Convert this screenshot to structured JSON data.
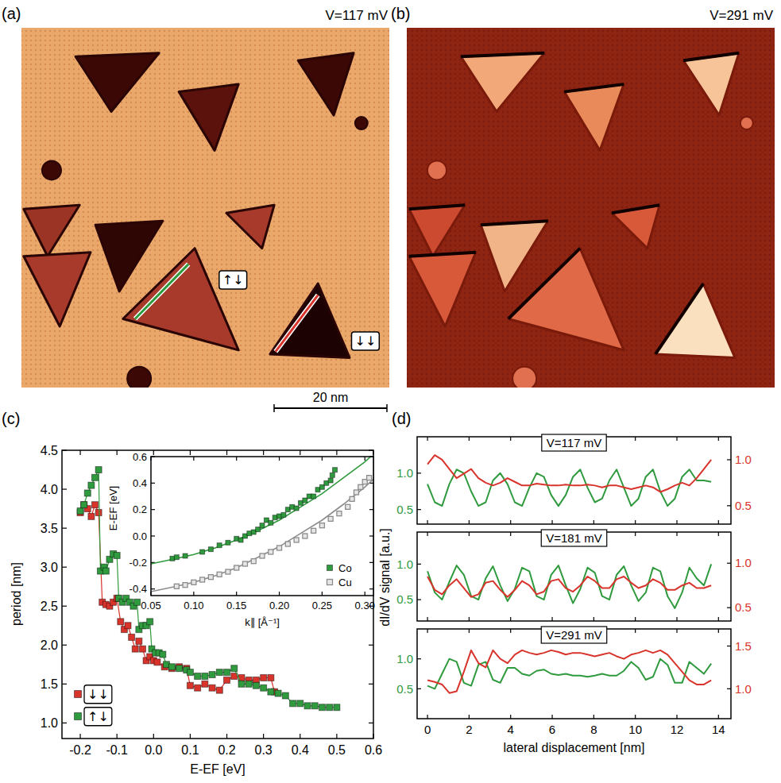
{
  "panels": [
    "(a)",
    "(b)",
    "(c)",
    "(d)"
  ],
  "images": [
    {
      "title": "V=117 mV",
      "labels": [
        "↑↓",
        "↓↓"
      ]
    },
    {
      "title": "V=291 mV"
    }
  ],
  "scale_bar": "20 nm",
  "chart_data": [
    {
      "type": "line",
      "marker": "square",
      "legend": "lower left",
      "xlabel": "E-EF [eV]",
      "ylabel": "period [nm]",
      "xlim": [
        -0.25,
        0.6
      ],
      "ylim": [
        0.8,
        4.5
      ],
      "xticks": [
        -0.2,
        -0.1,
        {
          "value": 0,
          "label": "0.0"
        },
        0.1,
        0.2,
        0.3,
        0.4,
        0.5,
        0.6
      ],
      "yticks": [
        {
          "value": 1,
          "label": "1.0"
        },
        1.5,
        {
          "value": 2,
          "label": "2.0"
        },
        2.5,
        {
          "value": 3,
          "label": "3.0"
        },
        3.5,
        {
          "value": 4,
          "label": "4.0"
        },
        4.5
      ],
      "series": [
        {
          "name": "↓↓",
          "color": "#d8342c",
          "x": [
            -0.2,
            -0.19,
            -0.18,
            -0.17,
            -0.16,
            -0.15,
            -0.14,
            -0.13,
            -0.12,
            -0.11,
            -0.1,
            -0.09,
            -0.08,
            -0.07,
            -0.06,
            -0.05,
            -0.04,
            -0.03,
            -0.02,
            -0.01,
            0.0,
            0.01,
            0.03,
            0.05,
            0.07,
            0.09,
            0.1,
            0.12,
            0.14,
            0.16,
            0.18,
            0.2,
            0.22,
            0.24,
            0.26,
            0.28,
            0.3,
            0.32,
            0.33
          ],
          "values": [
            3.7,
            3.8,
            3.75,
            3.65,
            3.8,
            3.7,
            2.55,
            2.52,
            2.5,
            2.55,
            2.6,
            2.3,
            2.2,
            2.25,
            2.1,
            1.95,
            2.05,
            1.95,
            1.8,
            1.85,
            1.8,
            1.78,
            1.72,
            1.7,
            1.72,
            1.7,
            1.48,
            1.45,
            1.5,
            1.45,
            1.42,
            1.55,
            1.6,
            1.58,
            1.55,
            1.55,
            1.58,
            1.58,
            1.4
          ]
        },
        {
          "name": "↑↓",
          "color": "#2f9a3e",
          "x": [
            -0.2,
            -0.19,
            -0.18,
            -0.17,
            -0.16,
            -0.15,
            -0.145,
            -0.135,
            -0.13,
            -0.12,
            -0.11,
            -0.1,
            -0.095,
            -0.085,
            -0.075,
            -0.065,
            -0.055,
            -0.045,
            -0.04,
            -0.03,
            -0.02,
            -0.01,
            -0.005,
            0.005,
            0.015,
            0.025,
            0.035,
            0.05,
            0.07,
            0.09,
            0.1,
            0.12,
            0.14,
            0.16,
            0.18,
            0.2,
            0.22,
            0.24,
            0.26,
            0.28,
            0.3,
            0.32,
            0.34,
            0.36,
            0.38,
            0.4,
            0.42,
            0.44,
            0.46,
            0.48,
            0.5
          ],
          "values": [
            3.72,
            3.8,
            3.95,
            4.05,
            4.15,
            4.25,
            2.95,
            3.0,
            2.95,
            3.1,
            3.17,
            3.15,
            2.6,
            2.55,
            2.6,
            2.55,
            2.5,
            2.55,
            2.2,
            2.25,
            2.25,
            2.3,
            1.95,
            1.9,
            1.9,
            1.88,
            1.75,
            1.72,
            1.7,
            1.68,
            1.65,
            1.6,
            1.6,
            1.62,
            1.65,
            1.65,
            1.7,
            1.5,
            1.5,
            1.48,
            1.45,
            1.4,
            1.38,
            1.35,
            1.25,
            1.25,
            1.22,
            1.22,
            1.2,
            1.2,
            1.2
          ]
        }
      ]
    },
    {
      "type": "scatter",
      "legend": "lower right",
      "xlabel": "k∥ [Å⁻¹]",
      "ylabel": "E-EF [eV]",
      "xlim": [
        0.05,
        0.31
      ],
      "ylim": [
        -0.45,
        0.6
      ],
      "xticks": [
        0.05,
        {
          "value": 0.1,
          "label": "0.10"
        },
        0.15,
        {
          "value": 0.2,
          "label": "0.20"
        },
        0.25,
        {
          "value": 0.3,
          "label": "0.30"
        }
      ],
      "yticks": [
        -0.4,
        -0.2,
        {
          "value": 0,
          "label": "0.0"
        },
        0.2,
        0.4,
        0.6
      ],
      "series": [
        {
          "name": "Co",
          "color": "#2f9a3e",
          "marker": "square",
          "x": [
            0.075,
            0.08,
            0.09,
            0.11,
            0.12,
            0.13,
            0.14,
            0.15,
            0.155,
            0.16,
            0.165,
            0.17,
            0.175,
            0.18,
            0.185,
            0.19,
            0.195,
            0.2,
            0.205,
            0.21,
            0.215,
            0.22,
            0.225,
            0.23,
            0.235,
            0.24,
            0.245,
            0.25,
            0.255,
            0.26,
            0.262,
            0.265
          ],
          "values": [
            -0.17,
            -0.16,
            -0.15,
            -0.12,
            -0.1,
            -0.07,
            -0.05,
            -0.02,
            -0.03,
            0.0,
            0.02,
            0.03,
            0.05,
            0.08,
            0.12,
            0.1,
            0.14,
            0.15,
            0.16,
            0.2,
            0.22,
            0.21,
            0.25,
            0.27,
            0.3,
            0.3,
            0.35,
            0.37,
            0.4,
            0.42,
            0.46,
            0.5
          ],
          "fit": {
            "x": [
              0.05,
              0.08,
              0.1,
              0.125,
              0.15,
              0.175,
              0.2,
              0.225,
              0.25,
              0.275,
              0.3,
              0.31
            ],
            "values": [
              -0.21,
              -0.17,
              -0.14,
              -0.09,
              -0.03,
              0.04,
              0.12,
              0.22,
              0.32,
              0.44,
              0.56,
              0.62
            ]
          }
        },
        {
          "name": "Cu",
          "color": "#8c8c8c",
          "marker": "open-square",
          "x": [
            0.08,
            0.09,
            0.1,
            0.11,
            0.12,
            0.13,
            0.14,
            0.15,
            0.16,
            0.17,
            0.18,
            0.19,
            0.2,
            0.21,
            0.22,
            0.23,
            0.24,
            0.25,
            0.26,
            0.27,
            0.28,
            0.285,
            0.29,
            0.295,
            0.3,
            0.305
          ],
          "values": [
            -0.38,
            -0.37,
            -0.35,
            -0.33,
            -0.31,
            -0.29,
            -0.27,
            -0.24,
            -0.21,
            -0.19,
            -0.15,
            -0.12,
            -0.09,
            -0.06,
            -0.03,
            0.0,
            0.04,
            0.08,
            0.13,
            0.17,
            0.22,
            0.28,
            0.33,
            0.37,
            0.41,
            0.44
          ],
          "fit": {
            "x": [
              0.05,
              0.08,
              0.1,
              0.125,
              0.15,
              0.175,
              0.2,
              0.225,
              0.25,
              0.275,
              0.3,
              0.31
            ],
            "values": [
              -0.42,
              -0.38,
              -0.35,
              -0.3,
              -0.24,
              -0.16,
              -0.08,
              0.02,
              0.12,
              0.24,
              0.37,
              0.43
            ]
          }
        }
      ]
    },
    {
      "type": "line",
      "title": "V=117 mV",
      "tick_labels": "y",
      "xlim": [
        -0.5,
        14.6
      ],
      "ylim": [
        0.3,
        1.5
      ],
      "y2lim": [
        0.3,
        1.25
      ],
      "xticks": [
        0,
        2,
        4,
        6,
        8,
        10,
        12,
        14
      ],
      "yticks": [
        0.5,
        {
          "value": 1,
          "label": "1.0"
        }
      ],
      "y2ticks": [
        0.5,
        {
          "value": 1,
          "label": "1.0"
        }
      ],
      "x": [
        0,
        0.35,
        0.7,
        1.05,
        1.4,
        1.75,
        2.1,
        2.45,
        2.8,
        3.15,
        3.5,
        3.85,
        4.2,
        4.55,
        4.9,
        5.25,
        5.6,
        5.95,
        6.3,
        6.65,
        7,
        7.35,
        7.7,
        8.05,
        8.4,
        8.75,
        9.1,
        9.45,
        9.8,
        10.15,
        10.5,
        10.85,
        11.2,
        11.55,
        11.9,
        12.25,
        12.6,
        12.95,
        13.3,
        13.65
      ],
      "series": [
        {
          "color": "#2f9a3e",
          "values": [
            0.85,
            0.6,
            0.55,
            0.85,
            1.05,
            1.0,
            0.75,
            0.55,
            0.6,
            0.9,
            1.0,
            0.85,
            0.6,
            0.55,
            0.8,
            1.0,
            0.95,
            0.7,
            0.55,
            0.7,
            0.95,
            1.05,
            0.8,
            0.6,
            0.65,
            0.9,
            1.05,
            0.8,
            0.55,
            0.65,
            0.95,
            1.05,
            0.75,
            0.55,
            0.65,
            0.95,
            1.05,
            0.9,
            0.9,
            0.88
          ]
        },
        {
          "color": "#d8342c",
          "axis": "y2",
          "values": [
            0.95,
            1.05,
            1.0,
            0.9,
            0.8,
            0.85,
            0.9,
            0.8,
            0.75,
            0.72,
            0.75,
            0.8,
            0.76,
            0.72,
            0.72,
            0.74,
            0.73,
            0.72,
            0.72,
            0.73,
            0.72,
            0.72,
            0.73,
            0.72,
            0.7,
            0.72,
            0.72,
            0.7,
            0.68,
            0.7,
            0.72,
            0.7,
            0.65,
            0.68,
            0.72,
            0.75,
            0.72,
            0.8,
            0.9,
            1.0
          ]
        }
      ]
    },
    {
      "type": "line",
      "title": "V=181 mV",
      "tick_labels": "y",
      "ylabel": "dI/dV signal [a.u.]",
      "xlim": [
        -0.5,
        14.6
      ],
      "ylim": [
        0.2,
        1.45
      ],
      "y2lim": [
        0.35,
        1.35
      ],
      "xticks": [
        0,
        2,
        4,
        6,
        8,
        10,
        12,
        14
      ],
      "yticks": [
        0.5,
        {
          "value": 1,
          "label": "1.0"
        }
      ],
      "y2ticks": [
        0.5,
        {
          "value": 1,
          "label": "1.0"
        }
      ],
      "x": [
        0,
        0.35,
        0.7,
        1.05,
        1.4,
        1.75,
        2.1,
        2.45,
        2.8,
        3.15,
        3.5,
        3.85,
        4.2,
        4.55,
        4.9,
        5.25,
        5.6,
        5.95,
        6.3,
        6.65,
        7,
        7.35,
        7.7,
        8.05,
        8.4,
        8.75,
        9.1,
        9.45,
        9.8,
        10.15,
        10.5,
        10.85,
        11.2,
        11.55,
        11.9,
        12.25,
        12.6,
        12.95,
        13.3,
        13.65
      ],
      "series": [
        {
          "color": "#2f9a3e",
          "values": [
            0.9,
            0.6,
            0.5,
            0.75,
            0.98,
            0.85,
            0.55,
            0.5,
            0.8,
            0.97,
            0.7,
            0.48,
            0.65,
            0.95,
            0.9,
            0.55,
            0.5,
            0.85,
            0.98,
            0.7,
            0.45,
            0.65,
            0.95,
            0.88,
            0.55,
            0.5,
            0.85,
            0.97,
            0.7,
            0.48,
            0.6,
            0.95,
            0.9,
            0.55,
            0.38,
            0.6,
            0.95,
            0.8,
            0.7,
            1.0
          ]
        },
        {
          "color": "#d8342c",
          "axis": "y2",
          "values": [
            0.85,
            0.7,
            0.65,
            0.75,
            0.82,
            0.72,
            0.62,
            0.65,
            0.78,
            0.8,
            0.7,
            0.62,
            0.7,
            0.8,
            0.75,
            0.65,
            0.68,
            0.8,
            0.82,
            0.72,
            0.68,
            0.75,
            0.85,
            0.8,
            0.72,
            0.72,
            0.82,
            0.85,
            0.78,
            0.72,
            0.75,
            0.82,
            0.78,
            0.7,
            0.7,
            0.75,
            0.78,
            0.72,
            0.72,
            0.75
          ]
        }
      ]
    },
    {
      "type": "line",
      "title": "V=291 mV",
      "xlabel": "lateral displacement [nm]",
      "xlim": [
        -0.5,
        14.6
      ],
      "ylim": [
        0.0,
        1.5
      ],
      "y2lim": [
        0.65,
        1.7
      ],
      "xticks": [
        0,
        2,
        4,
        6,
        8,
        10,
        12,
        14
      ],
      "yticks": [
        0.5,
        {
          "value": 1,
          "label": "1.0"
        }
      ],
      "y2ticks": [
        {
          "value": 1,
          "label": "1.0"
        },
        1.5
      ],
      "x": [
        0,
        0.35,
        0.7,
        1.05,
        1.4,
        1.75,
        2.1,
        2.45,
        2.8,
        3.15,
        3.5,
        3.85,
        4.2,
        4.55,
        4.9,
        5.25,
        5.6,
        5.95,
        6.3,
        6.65,
        7,
        7.35,
        7.7,
        8.05,
        8.4,
        8.75,
        9.1,
        9.45,
        9.8,
        10.15,
        10.5,
        10.85,
        11.2,
        11.55,
        11.9,
        12.25,
        12.6,
        12.95,
        13.3,
        13.65
      ],
      "series": [
        {
          "color": "#2f9a3e",
          "values": [
            0.55,
            0.5,
            0.75,
            1.0,
            0.95,
            0.6,
            0.55,
            0.9,
            0.95,
            0.65,
            0.6,
            0.85,
            0.85,
            0.75,
            0.72,
            0.8,
            0.82,
            0.75,
            0.73,
            0.75,
            0.72,
            0.72,
            0.7,
            0.72,
            0.75,
            0.72,
            0.72,
            0.8,
            0.95,
            0.85,
            0.65,
            0.7,
            1.0,
            0.9,
            0.6,
            0.6,
            0.95,
            0.85,
            0.75,
            0.92
          ]
        },
        {
          "color": "#d8342c",
          "axis": "y2",
          "values": [
            1.1,
            1.08,
            1.05,
            0.95,
            0.97,
            1.2,
            1.45,
            1.3,
            1.25,
            1.45,
            1.35,
            1.3,
            1.4,
            1.45,
            1.42,
            1.4,
            1.42,
            1.45,
            1.43,
            1.4,
            1.42,
            1.42,
            1.4,
            1.38,
            1.4,
            1.42,
            1.38,
            1.35,
            1.4,
            1.42,
            1.45,
            1.42,
            1.45,
            1.4,
            1.3,
            1.2,
            1.1,
            1.05,
            1.05,
            1.1
          ]
        }
      ]
    }
  ]
}
